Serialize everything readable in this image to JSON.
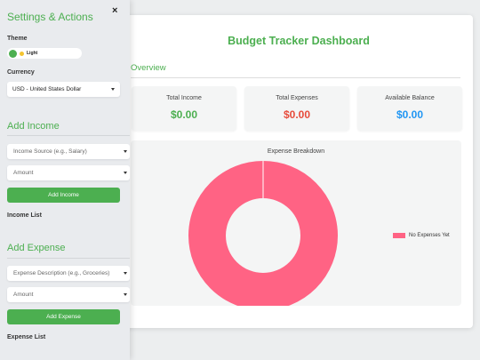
{
  "sidebar": {
    "title": "Settings & Actions",
    "close_label": "×",
    "theme_label": "Theme",
    "theme_value": "Light",
    "currency_label": "Currency",
    "currency_value": "USD - United States Dollar",
    "add_income": {
      "title": "Add Income",
      "source_placeholder": "Income Source (e.g., Salary)",
      "amount_placeholder": "Amount",
      "button_label": "Add Income",
      "list_label": "Income List"
    },
    "add_expense": {
      "title": "Add Expense",
      "description_placeholder": "Expense Description (e.g., Groceries)",
      "amount_placeholder": "Amount",
      "button_label": "Add Expense",
      "list_label": "Expense List"
    }
  },
  "main": {
    "title": "Budget Tracker Dashboard",
    "overview_title": "Overview",
    "stats": [
      {
        "label": "Total Income",
        "value": "$0.00",
        "color": "#4caf50"
      },
      {
        "label": "Total Expenses",
        "value": "$0.00",
        "color": "#e74c3c"
      },
      {
        "label": "Available Balance",
        "value": "$0.00",
        "color": "#2196f3"
      }
    ]
  },
  "chart_data": {
    "type": "pie",
    "title": "Expense Breakdown",
    "categories": [
      "No Expenses Yet"
    ],
    "values": [
      1
    ],
    "colors": [
      "#ff6384"
    ],
    "legend_position": "right"
  }
}
